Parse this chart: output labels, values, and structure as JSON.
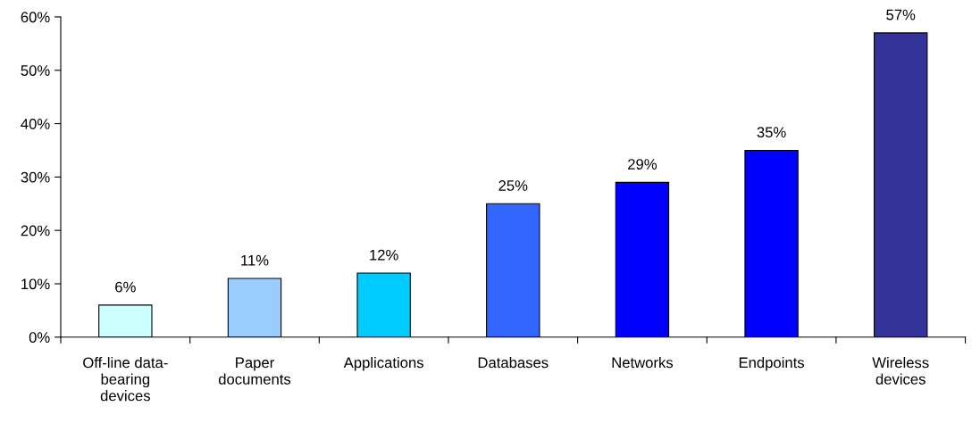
{
  "chart_data": {
    "type": "bar",
    "categories": [
      "Off-line data-\nbearing\ndevices",
      "Paper\ndocuments",
      "Applications",
      "Databases",
      "Networks",
      "Endpoints",
      "Wireless\ndevices"
    ],
    "values": [
      6,
      11,
      12,
      25,
      29,
      35,
      57
    ],
    "colors": [
      "#ccffff",
      "#99ccff",
      "#00ccff",
      "#3366ff",
      "#0000ff",
      "#0000ff",
      "#333399"
    ],
    "value_labels": [
      "6%",
      "11%",
      "12%",
      "25%",
      "29%",
      "35%",
      "57%"
    ],
    "ylim": [
      0,
      60
    ],
    "yticks": [
      {
        "value": 0,
        "label": "0%"
      },
      {
        "value": 10,
        "label": "10%"
      },
      {
        "value": 20,
        "label": "20%"
      },
      {
        "value": 30,
        "label": "30%"
      },
      {
        "value": 40,
        "label": "40%"
      },
      {
        "value": 50,
        "label": "50%"
      },
      {
        "value": 60,
        "label": "60%"
      }
    ],
    "grid": false,
    "legend": false
  }
}
